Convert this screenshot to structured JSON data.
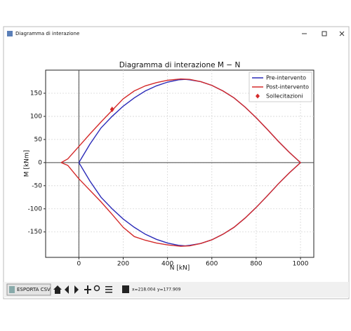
{
  "window": {
    "title": "Diagramma di interazione"
  },
  "toolbar": {
    "button": "ESPORTA CSV",
    "coords_x": "x=218.004",
    "coords_y": "y=177.909"
  },
  "chart_data": {
    "type": "line",
    "title": "Diagramma di interazione M − N",
    "xlabel": "N [kN]",
    "ylabel": "M [kNm]",
    "xlim": [
      -150,
      1060
    ],
    "ylim": [
      -205,
      200
    ],
    "xticks": [
      0,
      200,
      400,
      600,
      800,
      1000
    ],
    "yticks": [
      -150,
      -100,
      -50,
      0,
      50,
      100,
      150
    ],
    "grid": true,
    "zero_lines": true,
    "legend": "upper right",
    "series": [
      {
        "name": "Pre-intervento",
        "color": "#2b2bb8",
        "x": [
          0,
          50,
          100,
          150,
          200,
          250,
          300,
          350,
          400,
          450,
          480,
          500,
          550,
          600,
          650,
          700,
          750,
          800,
          850,
          900,
          950,
          1000,
          950,
          900,
          850,
          800,
          750,
          700,
          650,
          600,
          550,
          500,
          480,
          450,
          400,
          350,
          300,
          250,
          200,
          150,
          100,
          50,
          0
        ],
        "values": [
          0,
          40,
          75,
          100,
          122,
          140,
          155,
          166,
          174,
          179,
          180,
          179,
          175,
          167,
          155,
          140,
          120,
          97,
          72,
          46,
          22,
          0,
          -22,
          -46,
          -72,
          -97,
          -120,
          -140,
          -155,
          -167,
          -175,
          -179,
          -180,
          -179,
          -174,
          -166,
          -155,
          -140,
          -122,
          -100,
          -75,
          -40,
          0
        ]
      },
      {
        "name": "Post-intervento",
        "color": "#d42a2a",
        "x": [
          -80,
          -50,
          0,
          50,
          100,
          150,
          200,
          250,
          300,
          350,
          400,
          460,
          500,
          550,
          600,
          650,
          700,
          750,
          800,
          850,
          900,
          950,
          1000,
          950,
          900,
          850,
          800,
          750,
          700,
          650,
          600,
          550,
          500,
          460,
          400,
          350,
          300,
          250,
          200,
          150,
          100,
          50,
          0,
          -50,
          -80
        ],
        "values": [
          0,
          8,
          35,
          62,
          88,
          113,
          138,
          155,
          166,
          173,
          178,
          181,
          180,
          175,
          167,
          155,
          140,
          120,
          97,
          72,
          46,
          22,
          0,
          -22,
          -46,
          -72,
          -97,
          -120,
          -140,
          -155,
          -167,
          -175,
          -180,
          -181,
          -178,
          -174,
          -168,
          -160,
          -140,
          -112,
          -85,
          -60,
          -35,
          -6,
          0
        ]
      },
      {
        "name": "Sollecitazioni",
        "color": "#d42a2a",
        "marker": "diamond",
        "x": [
          150
        ],
        "values": [
          115
        ]
      }
    ]
  }
}
